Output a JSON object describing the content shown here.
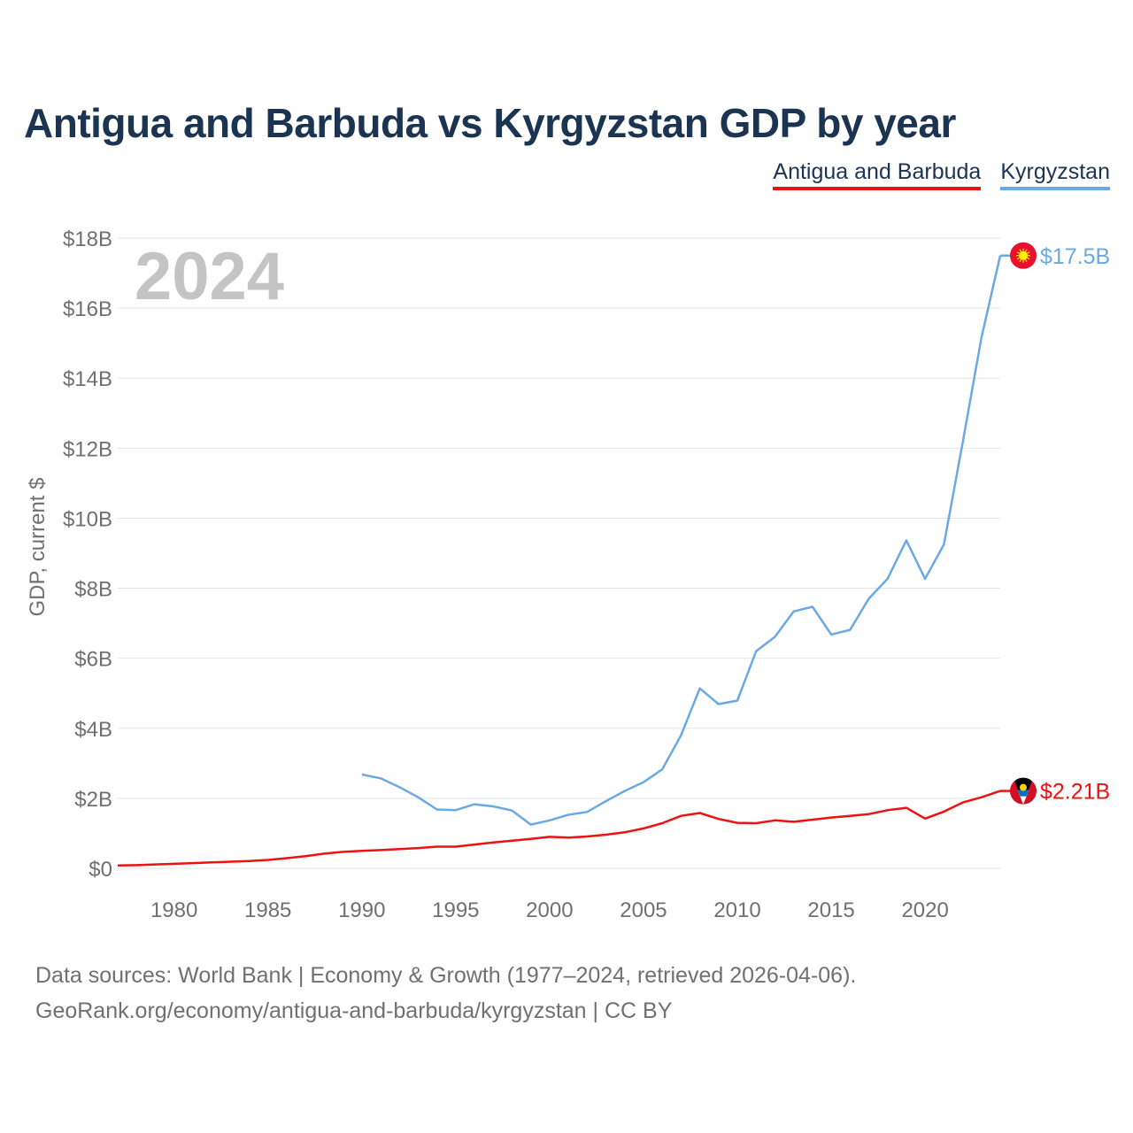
{
  "title": "Antigua and Barbuda vs Kyrgyzstan GDP by year",
  "legend": [
    "Antigua and Barbuda",
    "Kyrgyzstan"
  ],
  "year_watermark": "2024",
  "source_line": "Data sources: World Bank | Economy & Growth (1977–2024, retrieved 2026-04-06).",
  "source_link": "GeoRank.org/economy/antigua-and-barbuda/kyrgyzstan | CC BY",
  "colors": {
    "antigua": "#ee1111",
    "kyrgyzstan": "#6aa9e4",
    "title": "#1b3452",
    "axis_text": "#707070",
    "grid": "#e6e6e6"
  },
  "chart_data": {
    "type": "line",
    "title": "Antigua and Barbuda vs Kyrgyzstan GDP by year",
    "xlabel": "",
    "ylabel": "GDP, current $",
    "xlim": [
      1977,
      2024
    ],
    "ylim": [
      0,
      18
    ],
    "x_ticks": [
      1980,
      1985,
      1990,
      1995,
      2000,
      2005,
      2010,
      2015,
      2020
    ],
    "y_ticks": [
      0,
      2,
      4,
      6,
      8,
      10,
      12,
      14,
      16,
      18
    ],
    "y_tick_labels": [
      "$0",
      "$2B",
      "$4B",
      "$6B",
      "$8B",
      "$10B",
      "$12B",
      "$14B",
      "$16B",
      "$18B"
    ],
    "unit": "billions USD",
    "series": [
      {
        "name": "Antigua and Barbuda",
        "color": "#ee1111",
        "end_label": "$2.21B",
        "x": [
          1977,
          1978,
          1979,
          1980,
          1981,
          1982,
          1983,
          1984,
          1985,
          1986,
          1987,
          1988,
          1989,
          1990,
          1991,
          1992,
          1993,
          1994,
          1995,
          1996,
          1997,
          1998,
          1999,
          2000,
          2001,
          2002,
          2003,
          2004,
          2005,
          2006,
          2007,
          2008,
          2009,
          2010,
          2011,
          2012,
          2013,
          2014,
          2015,
          2016,
          2017,
          2018,
          2019,
          2020,
          2021,
          2022,
          2023,
          2024
        ],
        "values": [
          0.08,
          0.09,
          0.11,
          0.13,
          0.15,
          0.17,
          0.19,
          0.21,
          0.24,
          0.29,
          0.35,
          0.42,
          0.47,
          0.5,
          0.52,
          0.55,
          0.58,
          0.62,
          0.62,
          0.68,
          0.74,
          0.79,
          0.84,
          0.9,
          0.88,
          0.91,
          0.96,
          1.03,
          1.14,
          1.29,
          1.5,
          1.58,
          1.41,
          1.3,
          1.29,
          1.37,
          1.33,
          1.39,
          1.45,
          1.5,
          1.55,
          1.66,
          1.73,
          1.42,
          1.62,
          1.88,
          2.03,
          2.21
        ]
      },
      {
        "name": "Kyrgyzstan",
        "color": "#6aa9e4",
        "end_label": "$17.5B",
        "x": [
          1990,
          1991,
          1992,
          1993,
          1994,
          1995,
          1996,
          1997,
          1998,
          1999,
          2000,
          2001,
          2002,
          2003,
          2004,
          2005,
          2006,
          2007,
          2008,
          2009,
          2010,
          2011,
          2012,
          2013,
          2014,
          2015,
          2016,
          2017,
          2018,
          2019,
          2020,
          2021,
          2022,
          2023,
          2024
        ],
        "values": [
          2.68,
          2.57,
          2.32,
          2.03,
          1.68,
          1.66,
          1.83,
          1.77,
          1.65,
          1.25,
          1.37,
          1.53,
          1.61,
          1.92,
          2.21,
          2.46,
          2.83,
          3.8,
          5.14,
          4.69,
          4.79,
          6.2,
          6.61,
          7.34,
          7.47,
          6.68,
          6.81,
          7.7,
          8.27,
          9.37,
          8.27,
          9.25,
          12.16,
          15.16,
          17.5
        ]
      }
    ]
  }
}
